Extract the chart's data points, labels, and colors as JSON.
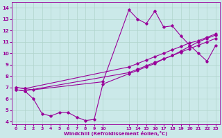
{
  "xlabel": "Windchill (Refroidissement éolien,°C)",
  "bg_color": "#cbe9e9",
  "grid_color": "#b0d4cc",
  "line_color": "#990099",
  "ylim": [
    3.8,
    14.5
  ],
  "xlim": [
    -0.5,
    23.5
  ],
  "yticks": [
    4,
    5,
    6,
    7,
    8,
    9,
    10,
    11,
    12,
    13,
    14
  ],
  "xticks": [
    0,
    1,
    2,
    3,
    4,
    5,
    6,
    7,
    8,
    9,
    10,
    13,
    14,
    15,
    16,
    17,
    18,
    19,
    20,
    21,
    22,
    23
  ],
  "xtick_labels": [
    "0",
    "1",
    "2",
    "3",
    "4",
    "5",
    "6",
    "7",
    "8",
    "9",
    "10",
    "13",
    "14",
    "15",
    "16",
    "17",
    "18",
    "19",
    "20",
    "21",
    "22",
    "23"
  ],
  "lines": [
    {
      "x": [
        0,
        1,
        2,
        10,
        13,
        14,
        15,
        16,
        17,
        18,
        19,
        20,
        21,
        22,
        23
      ],
      "y": [
        7.0,
        6.9,
        6.8,
        7.5,
        13.8,
        13.0,
        12.6,
        13.7,
        12.3,
        12.4,
        11.5,
        10.7,
        10.0,
        9.3,
        10.7
      ]
    },
    {
      "x": [
        0,
        1,
        2,
        3,
        4,
        5,
        6,
        7,
        8,
        9,
        10,
        13,
        14,
        15,
        16,
        17,
        18,
        19,
        20,
        21,
        22,
        23
      ],
      "y": [
        6.8,
        6.7,
        6.0,
        4.7,
        4.5,
        4.8,
        4.8,
        4.4,
        4.1,
        4.2,
        7.3,
        8.2,
        8.5,
        8.8,
        9.1,
        9.5,
        9.8,
        10.2,
        10.6,
        11.0,
        11.3,
        11.6
      ]
    },
    {
      "x": [
        0,
        1,
        13,
        14,
        15,
        16,
        17,
        18,
        19,
        20,
        21,
        22,
        23
      ],
      "y": [
        7.0,
        6.9,
        8.8,
        9.1,
        9.4,
        9.7,
        10.0,
        10.3,
        10.6,
        10.9,
        11.1,
        11.4,
        11.7
      ]
    },
    {
      "x": [
        0,
        1,
        13,
        14,
        15,
        16,
        17,
        18,
        19,
        20,
        21,
        22,
        23
      ],
      "y": [
        6.8,
        6.7,
        8.3,
        8.6,
        8.9,
        9.2,
        9.5,
        9.8,
        10.1,
        10.4,
        10.7,
        11.0,
        11.3
      ]
    }
  ]
}
